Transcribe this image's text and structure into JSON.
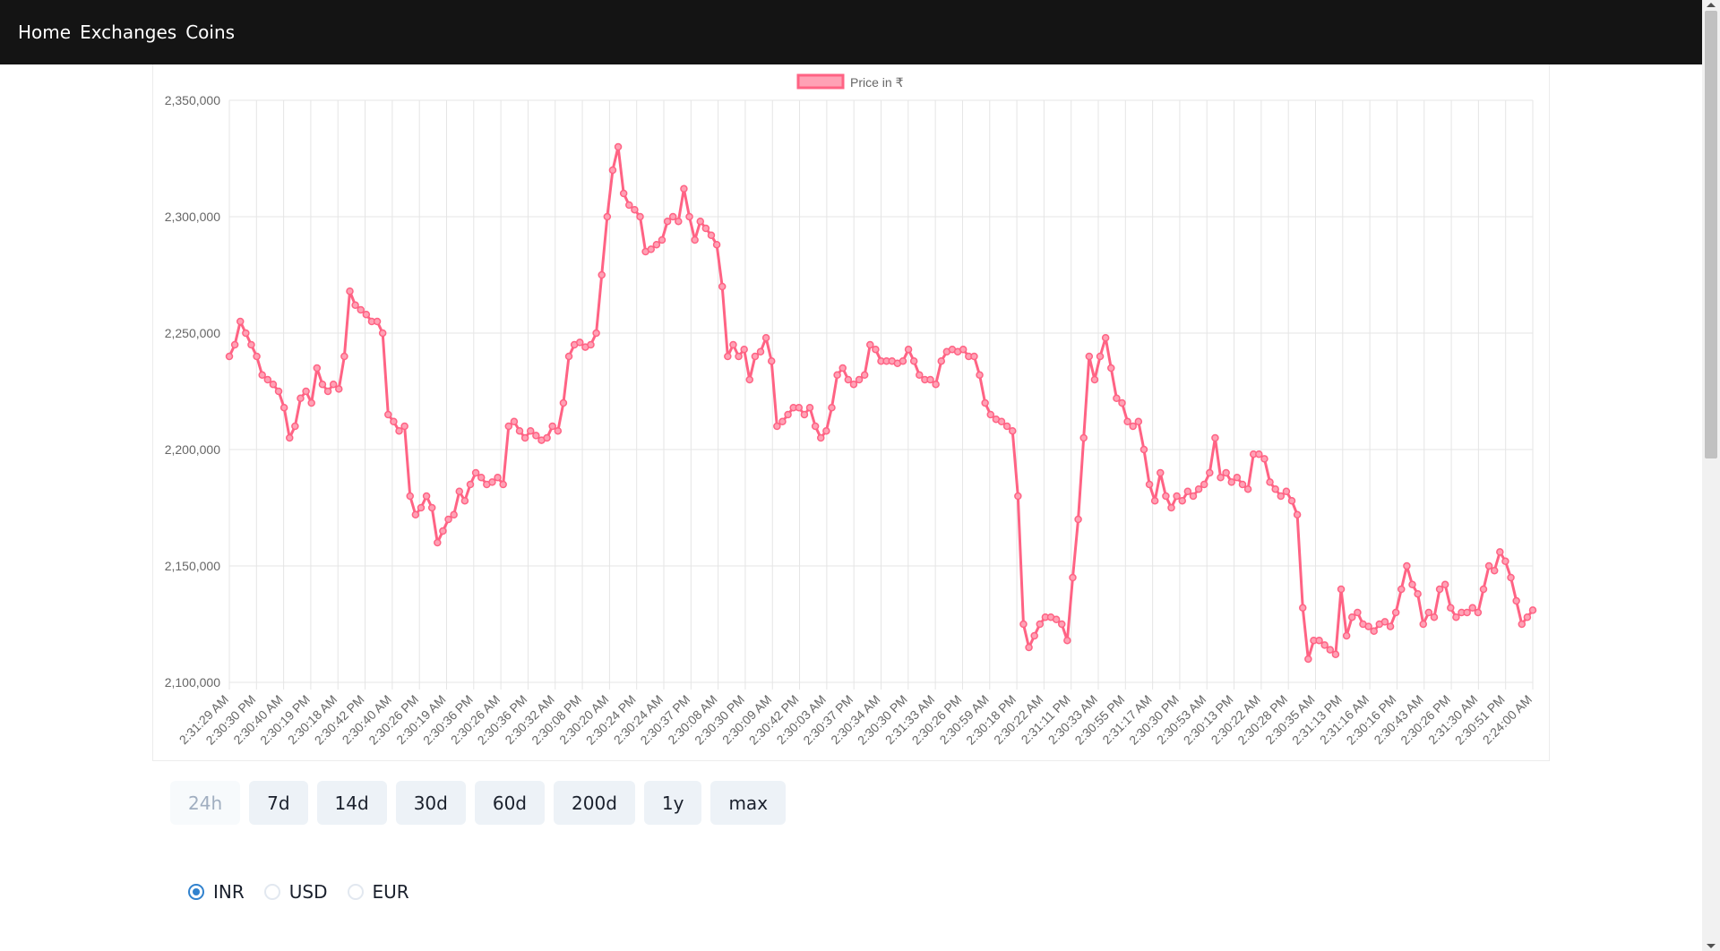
{
  "nav": {
    "items": [
      {
        "label": "Home"
      },
      {
        "label": "Exchanges"
      },
      {
        "label": "Coins"
      }
    ]
  },
  "colors": {
    "line": "#ff6384",
    "fill": "#ffa1b5",
    "navbar": "#141414",
    "grid": "#e5e5e5"
  },
  "chart_data": {
    "type": "line",
    "legend": "Price in ₹",
    "legend_position": "top",
    "grid": true,
    "ylim": [
      2100000,
      2350000
    ],
    "y_ticks": [
      2100000,
      2150000,
      2200000,
      2250000,
      2300000,
      2350000
    ],
    "y_tick_labels": [
      "2,100,000",
      "2,150,000",
      "2,200,000",
      "2,250,000",
      "2,300,000",
      "2,350,000"
    ],
    "x_tick_labels": [
      "2:31:29 AM",
      "2:30:30 PM",
      "2:30:40 AM",
      "2:30:19 PM",
      "2:30:18 AM",
      "2:30:42 PM",
      "2:30:40 AM",
      "2:30:26 PM",
      "2:30:19 AM",
      "2:30:36 PM",
      "2:30:26 AM",
      "2:30:36 PM",
      "2:30:32 AM",
      "2:30:08 PM",
      "2:30:20 AM",
      "2:30:24 PM",
      "2:30:24 AM",
      "2:30:37 PM",
      "2:30:08 AM",
      "2:30:30 PM",
      "2:30:09 AM",
      "2:30:42 PM",
      "2:30:03 AM",
      "2:30:37 PM",
      "2:30:34 AM",
      "2:30:30 PM",
      "2:31:33 AM",
      "2:30:26 PM",
      "2:30:59 AM",
      "2:30:18 PM",
      "2:30:22 AM",
      "2:31:11 PM",
      "2:30:33 AM",
      "2:30:55 PM",
      "2:31:17 AM",
      "2:30:30 PM",
      "2:30:53 AM",
      "2:30:13 PM",
      "2:30:22 AM",
      "2:30:28 PM",
      "2:30:35 AM",
      "2:31:13 PM",
      "2:31:16 AM",
      "2:30:16 PM",
      "2:30:43 AM",
      "2:30:26 PM",
      "2:31:30 AM",
      "2:30:51 PM",
      "2:24:00 AM"
    ],
    "values": [
      2240000,
      2245000,
      2255000,
      2250000,
      2245000,
      2240000,
      2232000,
      2230000,
      2228000,
      2225000,
      2218000,
      2205000,
      2210000,
      2222000,
      2225000,
      2220000,
      2235000,
      2228000,
      2225000,
      2228000,
      2226000,
      2240000,
      2268000,
      2262000,
      2260000,
      2258000,
      2255000,
      2255000,
      2250000,
      2215000,
      2212000,
      2208000,
      2210000,
      2180000,
      2172000,
      2175000,
      2180000,
      2175000,
      2160000,
      2165000,
      2170000,
      2172000,
      2182000,
      2178000,
      2185000,
      2190000,
      2188000,
      2185000,
      2186000,
      2188000,
      2185000,
      2210000,
      2212000,
      2208000,
      2205000,
      2208000,
      2206000,
      2204000,
      2205000,
      2210000,
      2208000,
      2220000,
      2240000,
      2245000,
      2246000,
      2244000,
      2245000,
      2250000,
      2275000,
      2300000,
      2320000,
      2330000,
      2310000,
      2305000,
      2303000,
      2300000,
      2285000,
      2286000,
      2288000,
      2290000,
      2298000,
      2300000,
      2298000,
      2312000,
      2300000,
      2290000,
      2298000,
      2295000,
      2292000,
      2288000,
      2270000,
      2240000,
      2245000,
      2240000,
      2243000,
      2230000,
      2240000,
      2242000,
      2248000,
      2238000,
      2210000,
      2212000,
      2215000,
      2218000,
      2218000,
      2215000,
      2218000,
      2210000,
      2205000,
      2208000,
      2218000,
      2232000,
      2235000,
      2230000,
      2228000,
      2230000,
      2232000,
      2245000,
      2243000,
      2238000,
      2238000,
      2238000,
      2237000,
      2238000,
      2243000,
      2238000,
      2232000,
      2230000,
      2230000,
      2228000,
      2238000,
      2242000,
      2243000,
      2242000,
      2243000,
      2240000,
      2240000,
      2232000,
      2220000,
      2215000,
      2213000,
      2212000,
      2210000,
      2208000,
      2180000,
      2125000,
      2115000,
      2120000,
      2125000,
      2128000,
      2128000,
      2127000,
      2125000,
      2118000,
      2145000,
      2170000,
      2205000,
      2240000,
      2230000,
      2240000,
      2248000,
      2235000,
      2222000,
      2220000,
      2212000,
      2210000,
      2212000,
      2200000,
      2185000,
      2178000,
      2190000,
      2180000,
      2175000,
      2180000,
      2178000,
      2182000,
      2180000,
      2183000,
      2185000,
      2190000,
      2205000,
      2188000,
      2190000,
      2186000,
      2188000,
      2185000,
      2183000,
      2198000,
      2198000,
      2196000,
      2186000,
      2183000,
      2180000,
      2182000,
      2178000,
      2172000,
      2132000,
      2110000,
      2118000,
      2118000,
      2116000,
      2114000,
      2112000,
      2140000,
      2120000,
      2128000,
      2130000,
      2125000,
      2124000,
      2122000,
      2125000,
      2126000,
      2124000,
      2130000,
      2140000,
      2150000,
      2142000,
      2138000,
      2125000,
      2130000,
      2128000,
      2140000,
      2142000,
      2132000,
      2128000,
      2130000,
      2130000,
      2132000,
      2130000,
      2140000,
      2150000,
      2148000,
      2156000,
      2152000,
      2145000,
      2135000,
      2125000,
      2128000,
      2131000
    ]
  },
  "range_buttons": [
    {
      "label": "24h",
      "disabled": true
    },
    {
      "label": "7d"
    },
    {
      "label": "14d"
    },
    {
      "label": "30d"
    },
    {
      "label": "60d"
    },
    {
      "label": "200d"
    },
    {
      "label": "1y"
    },
    {
      "label": "max"
    }
  ],
  "currency": {
    "selected": "INR",
    "options": [
      {
        "label": "INR"
      },
      {
        "label": "USD"
      },
      {
        "label": "EUR"
      }
    ]
  }
}
